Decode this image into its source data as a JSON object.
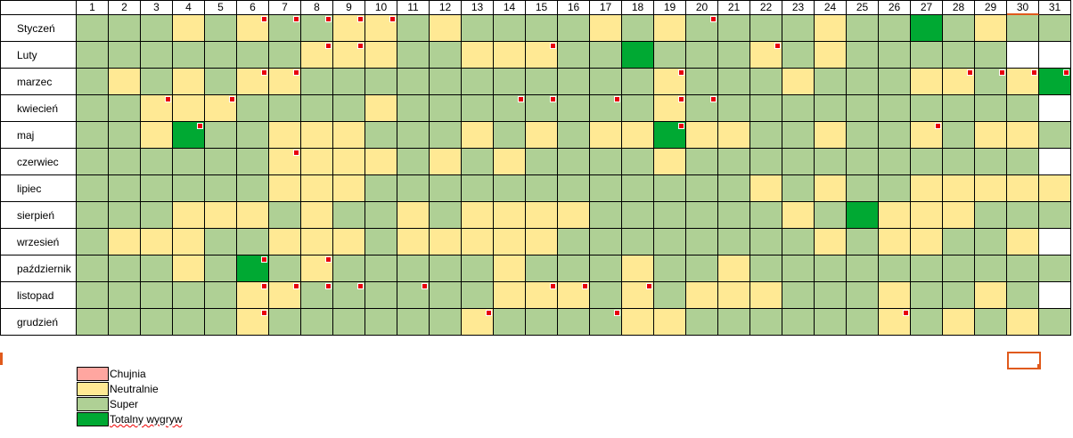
{
  "sheet": {
    "days": [
      1,
      2,
      3,
      4,
      5,
      6,
      7,
      8,
      9,
      10,
      11,
      12,
      13,
      14,
      15,
      16,
      17,
      18,
      19,
      20,
      21,
      22,
      23,
      24,
      25,
      26,
      27,
      28,
      29,
      30,
      31
    ],
    "legend": [
      {
        "label": "Chujnia",
        "color": "#ffa6a0"
      },
      {
        "label": "Neutralnie",
        "color": "#ffe994"
      },
      {
        "label": "Super",
        "color": "#afd095"
      },
      {
        "label": "Totalny wygryw",
        "color": "#00a933"
      }
    ],
    "comment_color": "#e8000d",
    "rows": [
      {
        "month": "Styczeń",
        "moods": [
          2,
          2,
          2,
          1,
          2,
          1,
          2,
          2,
          1,
          1,
          2,
          1,
          2,
          2,
          2,
          2,
          1,
          2,
          1,
          2,
          2,
          2,
          2,
          1,
          2,
          2,
          3,
          2,
          1,
          2,
          2
        ],
        "comments": [
          5,
          6,
          7,
          8,
          9,
          19
        ]
      },
      {
        "month": "Luty",
        "moods": [
          2,
          2,
          2,
          2,
          2,
          2,
          2,
          1,
          1,
          1,
          2,
          2,
          1,
          1,
          1,
          2,
          2,
          3,
          2,
          2,
          2,
          1,
          2,
          1,
          2,
          2,
          2,
          2,
          2,
          null,
          null
        ],
        "comments": [
          7,
          8,
          14,
          21
        ]
      },
      {
        "month": "marzec",
        "moods": [
          2,
          1,
          2,
          1,
          2,
          1,
          1,
          2,
          2,
          2,
          2,
          2,
          2,
          2,
          2,
          2,
          2,
          2,
          1,
          2,
          2,
          2,
          1,
          2,
          2,
          2,
          1,
          1,
          2,
          1,
          3
        ],
        "comments": [
          5,
          6,
          18,
          27,
          28,
          29,
          30
        ]
      },
      {
        "month": "kwiecień",
        "moods": [
          2,
          2,
          1,
          1,
          1,
          2,
          2,
          2,
          2,
          1,
          2,
          2,
          2,
          2,
          2,
          2,
          2,
          2,
          1,
          2,
          2,
          2,
          2,
          2,
          2,
          2,
          2,
          2,
          2,
          2,
          null
        ],
        "comments": [
          2,
          4,
          13,
          14,
          16,
          18,
          19
        ]
      },
      {
        "month": "maj",
        "moods": [
          2,
          2,
          1,
          3,
          2,
          2,
          1,
          1,
          1,
          2,
          2,
          2,
          1,
          2,
          1,
          2,
          1,
          1,
          3,
          1,
          1,
          2,
          2,
          1,
          2,
          2,
          1,
          2,
          1,
          1,
          2
        ],
        "comments": [
          3,
          18,
          26
        ]
      },
      {
        "month": "czerwiec",
        "moods": [
          2,
          2,
          2,
          2,
          2,
          2,
          1,
          1,
          1,
          1,
          2,
          1,
          2,
          1,
          2,
          2,
          2,
          2,
          1,
          2,
          2,
          2,
          2,
          2,
          2,
          2,
          2,
          2,
          2,
          2,
          null
        ],
        "comments": [
          6
        ]
      },
      {
        "month": "lipiec",
        "moods": [
          2,
          2,
          2,
          2,
          2,
          2,
          1,
          1,
          1,
          2,
          2,
          2,
          2,
          2,
          2,
          2,
          2,
          2,
          2,
          2,
          2,
          1,
          2,
          1,
          2,
          2,
          1,
          1,
          1,
          1,
          1
        ],
        "comments": []
      },
      {
        "month": "sierpień",
        "moods": [
          2,
          2,
          2,
          1,
          1,
          1,
          2,
          1,
          2,
          2,
          1,
          2,
          1,
          1,
          1,
          1,
          2,
          2,
          2,
          2,
          2,
          2,
          1,
          2,
          3,
          1,
          1,
          1,
          2,
          2,
          2
        ],
        "comments": []
      },
      {
        "month": "wrzesień",
        "moods": [
          2,
          1,
          1,
          1,
          2,
          2,
          1,
          1,
          1,
          2,
          1,
          1,
          1,
          1,
          1,
          2,
          2,
          2,
          2,
          2,
          2,
          2,
          2,
          1,
          2,
          1,
          1,
          2,
          2,
          1,
          null
        ],
        "comments": []
      },
      {
        "month": "październik",
        "moods": [
          2,
          2,
          2,
          1,
          2,
          3,
          2,
          1,
          2,
          2,
          2,
          2,
          2,
          1,
          2,
          2,
          2,
          1,
          2,
          2,
          1,
          2,
          2,
          2,
          2,
          2,
          2,
          2,
          2,
          2,
          2
        ],
        "comments": [
          5,
          7
        ]
      },
      {
        "month": "listopad",
        "moods": [
          2,
          2,
          2,
          2,
          2,
          1,
          1,
          2,
          2,
          2,
          2,
          2,
          2,
          1,
          1,
          1,
          2,
          1,
          2,
          1,
          1,
          1,
          2,
          2,
          2,
          1,
          2,
          2,
          1,
          2,
          null
        ],
        "comments": [
          5,
          6,
          7,
          8,
          10,
          14,
          15,
          17
        ]
      },
      {
        "month": "grudzień",
        "moods": [
          2,
          2,
          2,
          2,
          2,
          1,
          2,
          2,
          2,
          2,
          2,
          2,
          1,
          2,
          2,
          2,
          2,
          1,
          1,
          2,
          2,
          2,
          2,
          2,
          2,
          1,
          2,
          1,
          2,
          1,
          2
        ],
        "comments": [
          5,
          12,
          16,
          25
        ]
      }
    ]
  }
}
